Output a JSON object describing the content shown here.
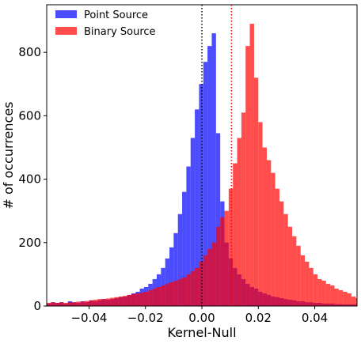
{
  "chart_data": {
    "type": "histogram",
    "title": "",
    "xlabel": "Kernel-Null",
    "ylabel": "# of occurrences",
    "xlim": [
      -0.055,
      0.055
    ],
    "ylim": [
      0,
      950
    ],
    "xticks": [
      -0.04,
      -0.02,
      0.0,
      0.02,
      0.04
    ],
    "xtick_labels": [
      "−0.04",
      "−0.02",
      "0.00",
      "0.02",
      "0.04"
    ],
    "yticks": [
      0,
      200,
      400,
      600,
      800
    ],
    "ytick_labels": [
      "0",
      "200",
      "400",
      "600",
      "800"
    ],
    "grid": false,
    "legend": {
      "placement": "top-left"
    },
    "bin_start": -0.055,
    "bin_width": 0.0015,
    "series": [
      {
        "name": "Point Source",
        "color": "#0000ff",
        "alpha": 0.7,
        "values": [
          8,
          12,
          10,
          12,
          8,
          15,
          12,
          10,
          15,
          12,
          18,
          15,
          18,
          22,
          20,
          22,
          25,
          28,
          30,
          35,
          40,
          45,
          55,
          60,
          70,
          85,
          100,
          120,
          150,
          185,
          230,
          290,
          360,
          440,
          530,
          620,
          700,
          770,
          820,
          860,
          545,
          330,
          200,
          150,
          120,
          100,
          85,
          70,
          60,
          55,
          45,
          40,
          35,
          30,
          28,
          25,
          22,
          20,
          18,
          15,
          15,
          12,
          12,
          10,
          10,
          8,
          8,
          8,
          6,
          6,
          5,
          5,
          5,
          5
        ]
      },
      {
        "name": "Binary Source",
        "color": "#ff0000",
        "alpha": 0.7,
        "values": [
          10,
          12,
          10,
          12,
          10,
          12,
          12,
          14,
          14,
          16,
          18,
          20,
          22,
          22,
          24,
          26,
          28,
          30,
          32,
          35,
          38,
          40,
          42,
          45,
          50,
          55,
          60,
          65,
          70,
          75,
          80,
          85,
          90,
          100,
          110,
          120,
          140,
          160,
          180,
          200,
          250,
          280,
          300,
          370,
          450,
          530,
          610,
          820,
          890,
          720,
          580,
          500,
          460,
          420,
          370,
          330,
          290,
          250,
          220,
          190,
          160,
          140,
          120,
          100,
          85,
          80,
          70,
          65,
          55,
          50,
          45,
          40,
          30,
          25
        ]
      }
    ],
    "vlines": [
      {
        "x": 0.0,
        "color": "#000000",
        "style": "dotted"
      },
      {
        "x": 0.0105,
        "color": "#ff0000",
        "style": "dotted"
      }
    ]
  }
}
